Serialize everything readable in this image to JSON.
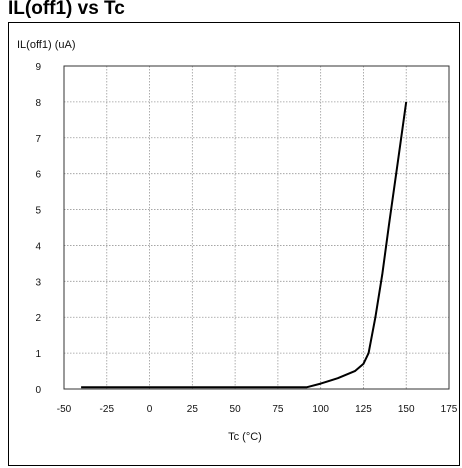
{
  "page": {
    "title": "IL(off1) vs Tc"
  },
  "chart_data": {
    "type": "line",
    "title": "",
    "ylabel": "IL(off1) (uA)",
    "xlabel": "Tc (°C)",
    "xlim": [
      -50,
      175
    ],
    "ylim": [
      0,
      9
    ],
    "x_ticks": [
      -50,
      -25,
      0,
      25,
      50,
      75,
      100,
      125,
      150,
      175
    ],
    "y_ticks": [
      0,
      1,
      2,
      3,
      4,
      5,
      6,
      7,
      8,
      9
    ],
    "grid": true,
    "line_color": "#000000",
    "grid_color": "#999999",
    "series": [
      {
        "x": [
          -40,
          0,
          25,
          50,
          75,
          92,
          100,
          110,
          120,
          125,
          128,
          132,
          136,
          140,
          145,
          150
        ],
        "y": [
          0.05,
          0.05,
          0.05,
          0.05,
          0.05,
          0.05,
          0.15,
          0.3,
          0.5,
          0.7,
          1.0,
          2.0,
          3.2,
          4.6,
          6.3,
          8.0
        ]
      }
    ]
  }
}
